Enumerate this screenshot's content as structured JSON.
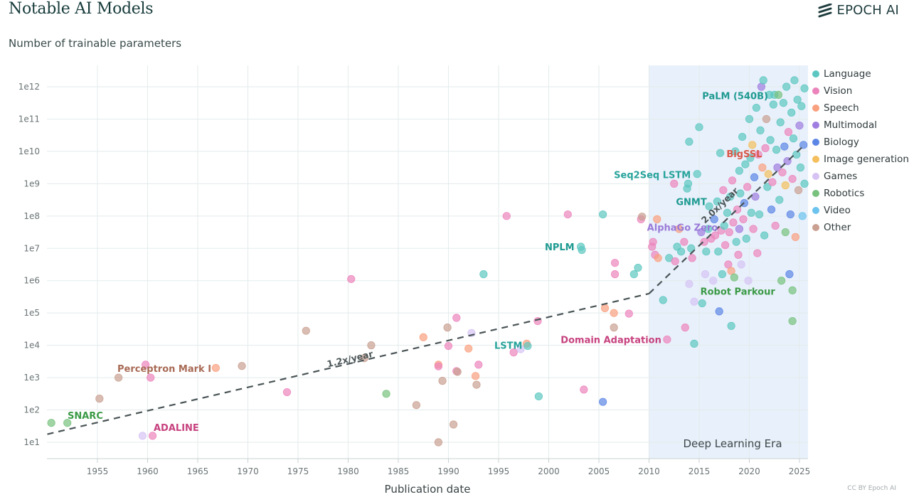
{
  "header": {
    "title": "Notable AI Models",
    "subtitle": "Number of trainable parameters",
    "brand": "EPOCH AI",
    "credit": "CC BY Epoch AI"
  },
  "chart_data": {
    "type": "scatter",
    "title": "Notable AI Models",
    "ylabel": "Number of trainable parameters",
    "xlabel": "Publication date",
    "y_scale": "log",
    "xlim": [
      1950,
      2025.8
    ],
    "ylim_log10": [
      0.5,
      12.6
    ],
    "grid": true,
    "legend_position": "right",
    "x_ticks": [
      "1955",
      "1960",
      "1965",
      "1970",
      "1975",
      "1980",
      "1985",
      "1990",
      "1995",
      "2000",
      "2005",
      "2010",
      "2015",
      "2020",
      "2025"
    ],
    "y_ticks": [
      "1e1",
      "1e2",
      "1e3",
      "1e4",
      "1e5",
      "1e6",
      "1e7",
      "1e8",
      "1e9",
      "1e10",
      "1e11",
      "1e12"
    ],
    "shaded_region": {
      "label": "Deep Learning Era",
      "x_start": 2010,
      "x_end": 2025.8,
      "color": "#e8f0fb"
    },
    "trend_lines": [
      {
        "label": "1.2x/year",
        "points": [
          [
            1950,
            1.25
          ],
          [
            2010,
            5.6
          ]
        ]
      },
      {
        "label": "2.0x/year",
        "points": [
          [
            2010,
            5.6
          ],
          [
            2025.5,
            10.2
          ]
        ]
      }
    ],
    "categories": [
      {
        "name": "Language",
        "color": "#5cc7c0"
      },
      {
        "name": "Vision",
        "color": "#ec84bc"
      },
      {
        "name": "Speech",
        "color": "#f9a07f"
      },
      {
        "name": "Multimodal",
        "color": "#a07de0"
      },
      {
        "name": "Biology",
        "color": "#5c86e6"
      },
      {
        "name": "Image generation",
        "color": "#f4bf5c"
      },
      {
        "name": "Games",
        "color": "#d6c3f4"
      },
      {
        "name": "Robotics",
        "color": "#78c27e"
      },
      {
        "name": "Video",
        "color": "#6cc3ee"
      },
      {
        "name": "Other",
        "color": "#c9a091"
      }
    ],
    "annotations": [
      {
        "text": "SNARC",
        "x": 1951.9,
        "y_log10": 1.75,
        "color": "#3b9a46"
      },
      {
        "text": "ADALINE",
        "x": 1960.5,
        "y_log10": 1.2,
        "color": "#c7427f"
      },
      {
        "text": "Perceptron Mark I",
        "x": 1957.1,
        "y_log10": 3.45,
        "color": "#a86a55"
      },
      {
        "text": "LSTM",
        "x": 1997.8,
        "y_log10": 4.0,
        "color": "#27a39b"
      },
      {
        "text": "NPLM",
        "x": 2003.2,
        "y_log10": 7.05,
        "color": "#1e9a91"
      },
      {
        "text": "Domain Adaptation",
        "x": 2011.8,
        "y_log10": 4.18,
        "color": "#c7427f"
      },
      {
        "text": "Seq2Seq LSTM",
        "x": 2014.8,
        "y_log10": 9.28,
        "color": "#27a39b"
      },
      {
        "text": "GNMT",
        "x": 2016.4,
        "y_log10": 8.45,
        "color": "#1e9a91"
      },
      {
        "text": "AlphaGo Zero",
        "x": 2017.5,
        "y_log10": 7.65,
        "color": "#9a7ad8"
      },
      {
        "text": "BigSSL",
        "x": 2021.7,
        "y_log10": 9.93,
        "color": "#d9584a"
      },
      {
        "text": "PaLM (540B)",
        "x": 2022.3,
        "y_log10": 11.73,
        "color": "#1e9a91"
      },
      {
        "text": "Robot Parkour",
        "x": 2023.0,
        "y_log10": 5.68,
        "color": "#3b9a46"
      }
    ],
    "points": [
      {
        "x": 1950.4,
        "y": 1.6,
        "c": "Robotics"
      },
      {
        "x": 1952.0,
        "y": 1.6,
        "c": "Robotics"
      },
      {
        "x": 1955.2,
        "y": 2.35,
        "c": "Other"
      },
      {
        "x": 1957.1,
        "y": 3.0,
        "c": "Other"
      },
      {
        "x": 1959.5,
        "y": 1.2,
        "c": "Games"
      },
      {
        "x": 1960.5,
        "y": 1.2,
        "c": "Vision"
      },
      {
        "x": 1959.8,
        "y": 3.4,
        "c": "Vision"
      },
      {
        "x": 1960.3,
        "y": 3.0,
        "c": "Vision"
      },
      {
        "x": 1966.8,
        "y": 3.3,
        "c": "Speech"
      },
      {
        "x": 1969.4,
        "y": 3.36,
        "c": "Other"
      },
      {
        "x": 1973.9,
        "y": 2.55,
        "c": "Vision"
      },
      {
        "x": 1975.8,
        "y": 4.45,
        "c": "Other"
      },
      {
        "x": 1980.3,
        "y": 6.05,
        "c": "Vision"
      },
      {
        "x": 1981.6,
        "y": 3.6,
        "c": "Other"
      },
      {
        "x": 1982.3,
        "y": 4.0,
        "c": "Other"
      },
      {
        "x": 1983.8,
        "y": 2.5,
        "c": "Robotics"
      },
      {
        "x": 1986.8,
        "y": 2.15,
        "c": "Other"
      },
      {
        "x": 1987.5,
        "y": 4.25,
        "c": "Speech"
      },
      {
        "x": 1989.0,
        "y": 3.4,
        "c": "Speech"
      },
      {
        "x": 1989.0,
        "y": 3.35,
        "c": "Vision"
      },
      {
        "x": 1989.0,
        "y": 1.0,
        "c": "Other"
      },
      {
        "x": 1989.4,
        "y": 2.9,
        "c": "Other"
      },
      {
        "x": 1989.9,
        "y": 4.55,
        "c": "Other"
      },
      {
        "x": 1990.0,
        "y": 3.98,
        "c": "Vision"
      },
      {
        "x": 1990.5,
        "y": 1.55,
        "c": "Other"
      },
      {
        "x": 1990.8,
        "y": 3.2,
        "c": "Vision"
      },
      {
        "x": 1990.9,
        "y": 3.18,
        "c": "Other"
      },
      {
        "x": 1990.8,
        "y": 4.85,
        "c": "Vision"
      },
      {
        "x": 1992.0,
        "y": 3.9,
        "c": "Speech"
      },
      {
        "x": 1992.3,
        "y": 4.38,
        "c": "Games"
      },
      {
        "x": 1992.7,
        "y": 3.05,
        "c": "Speech"
      },
      {
        "x": 1992.8,
        "y": 2.78,
        "c": "Other"
      },
      {
        "x": 1993.0,
        "y": 3.4,
        "c": "Vision"
      },
      {
        "x": 1993.5,
        "y": 6.2,
        "c": "Language"
      },
      {
        "x": 1995.8,
        "y": 8.0,
        "c": "Vision"
      },
      {
        "x": 1996.5,
        "y": 3.78,
        "c": "Vision"
      },
      {
        "x": 1997.2,
        "y": 3.88,
        "c": "Games"
      },
      {
        "x": 1997.8,
        "y": 4.05,
        "c": "Speech"
      },
      {
        "x": 1997.9,
        "y": 3.98,
        "c": "Language"
      },
      {
        "x": 1998.9,
        "y": 4.75,
        "c": "Vision"
      },
      {
        "x": 1999.0,
        "y": 2.42,
        "c": "Language"
      },
      {
        "x": 2001.9,
        "y": 8.05,
        "c": "Vision"
      },
      {
        "x": 2003.2,
        "y": 7.05,
        "c": "Language"
      },
      {
        "x": 2003.3,
        "y": 6.95,
        "c": "Language"
      },
      {
        "x": 2003.5,
        "y": 2.63,
        "c": "Vision"
      },
      {
        "x": 2005.4,
        "y": 8.05,
        "c": "Language"
      },
      {
        "x": 2005.4,
        "y": 2.25,
        "c": "Biology"
      },
      {
        "x": 2005.6,
        "y": 5.15,
        "c": "Speech"
      },
      {
        "x": 2006.5,
        "y": 5.0,
        "c": "Speech"
      },
      {
        "x": 2006.5,
        "y": 4.55,
        "c": "Other"
      },
      {
        "x": 2006.6,
        "y": 6.55,
        "c": "Vision"
      },
      {
        "x": 2006.6,
        "y": 6.2,
        "c": "Vision"
      },
      {
        "x": 2008.0,
        "y": 4.98,
        "c": "Vision"
      },
      {
        "x": 2008.5,
        "y": 6.2,
        "c": "Language"
      },
      {
        "x": 2008.9,
        "y": 6.4,
        "c": "Language"
      },
      {
        "x": 2009.2,
        "y": 7.9,
        "c": "Vision"
      },
      {
        "x": 2009.3,
        "y": 7.98,
        "c": "Other"
      },
      {
        "x": 2010.3,
        "y": 7.05,
        "c": "Vision"
      },
      {
        "x": 2010.4,
        "y": 7.2,
        "c": "Vision"
      },
      {
        "x": 2010.6,
        "y": 6.8,
        "c": "Vision"
      },
      {
        "x": 2010.8,
        "y": 7.9,
        "c": "Speech"
      },
      {
        "x": 2010.9,
        "y": 6.7,
        "c": "Speech"
      },
      {
        "x": 2011.4,
        "y": 5.4,
        "c": "Language"
      },
      {
        "x": 2011.8,
        "y": 4.18,
        "c": "Vision"
      },
      {
        "x": 2012.0,
        "y": 6.7,
        "c": "Language"
      },
      {
        "x": 2012.5,
        "y": 9.0,
        "c": "Vision"
      },
      {
        "x": 2012.6,
        "y": 6.6,
        "c": "Vision"
      },
      {
        "x": 2012.8,
        "y": 7.05,
        "c": "Language"
      },
      {
        "x": 2013.0,
        "y": 7.6,
        "c": "Speech"
      },
      {
        "x": 2013.2,
        "y": 6.9,
        "c": "Language"
      },
      {
        "x": 2013.5,
        "y": 7.2,
        "c": "Vision"
      },
      {
        "x": 2013.6,
        "y": 4.55,
        "c": "Vision"
      },
      {
        "x": 2013.8,
        "y": 8.85,
        "c": "Language"
      },
      {
        "x": 2013.9,
        "y": 9.0,
        "c": "Language"
      },
      {
        "x": 2014.0,
        "y": 10.3,
        "c": "Language"
      },
      {
        "x": 2014.0,
        "y": 5.9,
        "c": "Games"
      },
      {
        "x": 2014.2,
        "y": 7.0,
        "c": "Language"
      },
      {
        "x": 2014.3,
        "y": 6.7,
        "c": "Vision"
      },
      {
        "x": 2014.5,
        "y": 5.35,
        "c": "Games"
      },
      {
        "x": 2014.5,
        "y": 4.05,
        "c": "Language"
      },
      {
        "x": 2014.8,
        "y": 9.3,
        "c": "Language"
      },
      {
        "x": 2015.0,
        "y": 10.75,
        "c": "Language"
      },
      {
        "x": 2015.2,
        "y": 7.5,
        "c": "Multimodal"
      },
      {
        "x": 2015.3,
        "y": 5.3,
        "c": "Language"
      },
      {
        "x": 2015.5,
        "y": 7.2,
        "c": "Vision"
      },
      {
        "x": 2015.6,
        "y": 6.2,
        "c": "Games"
      },
      {
        "x": 2015.7,
        "y": 6.9,
        "c": "Language"
      },
      {
        "x": 2015.9,
        "y": 7.6,
        "c": "Language"
      },
      {
        "x": 2016.0,
        "y": 8.3,
        "c": "Language"
      },
      {
        "x": 2016.2,
        "y": 7.3,
        "c": "Vision"
      },
      {
        "x": 2016.4,
        "y": 6.0,
        "c": "Games"
      },
      {
        "x": 2016.5,
        "y": 7.9,
        "c": "Biology"
      },
      {
        "x": 2016.6,
        "y": 7.4,
        "c": "Vision"
      },
      {
        "x": 2016.8,
        "y": 8.45,
        "c": "Language"
      },
      {
        "x": 2016.9,
        "y": 6.9,
        "c": "Language"
      },
      {
        "x": 2017.0,
        "y": 5.05,
        "c": "Biology"
      },
      {
        "x": 2017.1,
        "y": 9.95,
        "c": "Language"
      },
      {
        "x": 2017.2,
        "y": 7.55,
        "c": "Vision"
      },
      {
        "x": 2017.3,
        "y": 6.2,
        "c": "Language"
      },
      {
        "x": 2017.4,
        "y": 8.8,
        "c": "Vision"
      },
      {
        "x": 2017.5,
        "y": 7.7,
        "c": "Language"
      },
      {
        "x": 2017.6,
        "y": 7.1,
        "c": "Vision"
      },
      {
        "x": 2017.8,
        "y": 8.1,
        "c": "Language"
      },
      {
        "x": 2017.9,
        "y": 6.5,
        "c": "Vision"
      },
      {
        "x": 2018.0,
        "y": 7.5,
        "c": "Vision"
      },
      {
        "x": 2018.1,
        "y": 8.6,
        "c": "Language"
      },
      {
        "x": 2018.2,
        "y": 6.3,
        "c": "Speech"
      },
      {
        "x": 2018.2,
        "y": 4.6,
        "c": "Language"
      },
      {
        "x": 2018.3,
        "y": 9.1,
        "c": "Vision"
      },
      {
        "x": 2018.4,
        "y": 7.8,
        "c": "Vision"
      },
      {
        "x": 2018.5,
        "y": 6.1,
        "c": "Robotics"
      },
      {
        "x": 2018.6,
        "y": 10.0,
        "c": "Language"
      },
      {
        "x": 2018.7,
        "y": 7.2,
        "c": "Language"
      },
      {
        "x": 2018.8,
        "y": 8.2,
        "c": "Vision"
      },
      {
        "x": 2018.9,
        "y": 6.8,
        "c": "Vision"
      },
      {
        "x": 2019.0,
        "y": 9.4,
        "c": "Language"
      },
      {
        "x": 2019.0,
        "y": 7.6,
        "c": "Multimodal"
      },
      {
        "x": 2019.1,
        "y": 8.7,
        "c": "Language"
      },
      {
        "x": 2019.2,
        "y": 6.5,
        "c": "Games"
      },
      {
        "x": 2019.3,
        "y": 10.45,
        "c": "Language"
      },
      {
        "x": 2019.4,
        "y": 7.9,
        "c": "Vision"
      },
      {
        "x": 2019.5,
        "y": 8.4,
        "c": "Biology"
      },
      {
        "x": 2019.6,
        "y": 9.6,
        "c": "Language"
      },
      {
        "x": 2019.7,
        "y": 7.3,
        "c": "Language"
      },
      {
        "x": 2019.8,
        "y": 8.9,
        "c": "Vision"
      },
      {
        "x": 2019.9,
        "y": 6.0,
        "c": "Games"
      },
      {
        "x": 2020.0,
        "y": 11.0,
        "c": "Language"
      },
      {
        "x": 2020.1,
        "y": 9.8,
        "c": "Language"
      },
      {
        "x": 2020.2,
        "y": 8.1,
        "c": "Language"
      },
      {
        "x": 2020.3,
        "y": 10.2,
        "c": "Image generation"
      },
      {
        "x": 2020.4,
        "y": 7.6,
        "c": "Vision"
      },
      {
        "x": 2020.5,
        "y": 9.2,
        "c": "Biology"
      },
      {
        "x": 2020.6,
        "y": 8.6,
        "c": "Multimodal"
      },
      {
        "x": 2020.7,
        "y": 11.35,
        "c": "Language"
      },
      {
        "x": 2020.8,
        "y": 6.85,
        "c": "Vision"
      },
      {
        "x": 2020.9,
        "y": 9.9,
        "c": "Vision"
      },
      {
        "x": 2021.0,
        "y": 8.05,
        "c": "Language"
      },
      {
        "x": 2021.1,
        "y": 10.65,
        "c": "Language"
      },
      {
        "x": 2021.2,
        "y": 12.0,
        "c": "Multimodal"
      },
      {
        "x": 2021.3,
        "y": 9.5,
        "c": "Speech"
      },
      {
        "x": 2021.4,
        "y": 12.2,
        "c": "Language"
      },
      {
        "x": 2021.5,
        "y": 7.4,
        "c": "Language"
      },
      {
        "x": 2021.6,
        "y": 10.1,
        "c": "Vision"
      },
      {
        "x": 2021.7,
        "y": 11.0,
        "c": "Other"
      },
      {
        "x": 2021.8,
        "y": 8.9,
        "c": "Language"
      },
      {
        "x": 2021.9,
        "y": 9.3,
        "c": "Image generation"
      },
      {
        "x": 2022.0,
        "y": 11.75,
        "c": "Language"
      },
      {
        "x": 2022.1,
        "y": 10.35,
        "c": "Language"
      },
      {
        "x": 2022.2,
        "y": 8.2,
        "c": "Biology"
      },
      {
        "x": 2022.3,
        "y": 9.05,
        "c": "Vision"
      },
      {
        "x": 2022.4,
        "y": 11.45,
        "c": "Language"
      },
      {
        "x": 2022.5,
        "y": 11.75,
        "c": "Language"
      },
      {
        "x": 2022.6,
        "y": 7.7,
        "c": "Vision"
      },
      {
        "x": 2022.7,
        "y": 10.05,
        "c": "Language"
      },
      {
        "x": 2022.8,
        "y": 9.5,
        "c": "Multimodal"
      },
      {
        "x": 2022.9,
        "y": 11.75,
        "c": "Robotics"
      },
      {
        "x": 2023.0,
        "y": 8.5,
        "c": "Language"
      },
      {
        "x": 2023.1,
        "y": 10.9,
        "c": "Language"
      },
      {
        "x": 2023.2,
        "y": 6.0,
        "c": "Robotics"
      },
      {
        "x": 2023.3,
        "y": 9.35,
        "c": "Vision"
      },
      {
        "x": 2023.4,
        "y": 11.5,
        "c": "Language"
      },
      {
        "x": 2023.5,
        "y": 10.15,
        "c": "Biology"
      },
      {
        "x": 2023.6,
        "y": 7.5,
        "c": "Robotics"
      },
      {
        "x": 2023.6,
        "y": 8.95,
        "c": "Image generation"
      },
      {
        "x": 2023.7,
        "y": 12.0,
        "c": "Language"
      },
      {
        "x": 2023.8,
        "y": 9.7,
        "c": "Multimodal"
      },
      {
        "x": 2023.9,
        "y": 10.6,
        "c": "Vision"
      },
      {
        "x": 2024.0,
        "y": 6.2,
        "c": "Biology"
      },
      {
        "x": 2024.1,
        "y": 8.05,
        "c": "Biology"
      },
      {
        "x": 2024.2,
        "y": 11.2,
        "c": "Language"
      },
      {
        "x": 2024.3,
        "y": 9.15,
        "c": "Vision"
      },
      {
        "x": 2024.3,
        "y": 5.7,
        "c": "Robotics"
      },
      {
        "x": 2024.3,
        "y": 4.75,
        "c": "Robotics"
      },
      {
        "x": 2024.4,
        "y": 10.4,
        "c": "Language"
      },
      {
        "x": 2024.5,
        "y": 12.2,
        "c": "Language"
      },
      {
        "x": 2024.6,
        "y": 7.35,
        "c": "Speech"
      },
      {
        "x": 2024.7,
        "y": 9.9,
        "c": "Language"
      },
      {
        "x": 2024.8,
        "y": 11.6,
        "c": "Language"
      },
      {
        "x": 2024.9,
        "y": 8.8,
        "c": "Other"
      },
      {
        "x": 2025.0,
        "y": 10.8,
        "c": "Multimodal"
      },
      {
        "x": 2025.1,
        "y": 9.5,
        "c": "Language"
      },
      {
        "x": 2025.2,
        "y": 11.4,
        "c": "Language"
      },
      {
        "x": 2025.3,
        "y": 8.0,
        "c": "Video"
      },
      {
        "x": 2025.4,
        "y": 10.2,
        "c": "Biology"
      },
      {
        "x": 2025.5,
        "y": 11.95,
        "c": "Language"
      },
      {
        "x": 2025.5,
        "y": 9.0,
        "c": "Language"
      }
    ]
  }
}
